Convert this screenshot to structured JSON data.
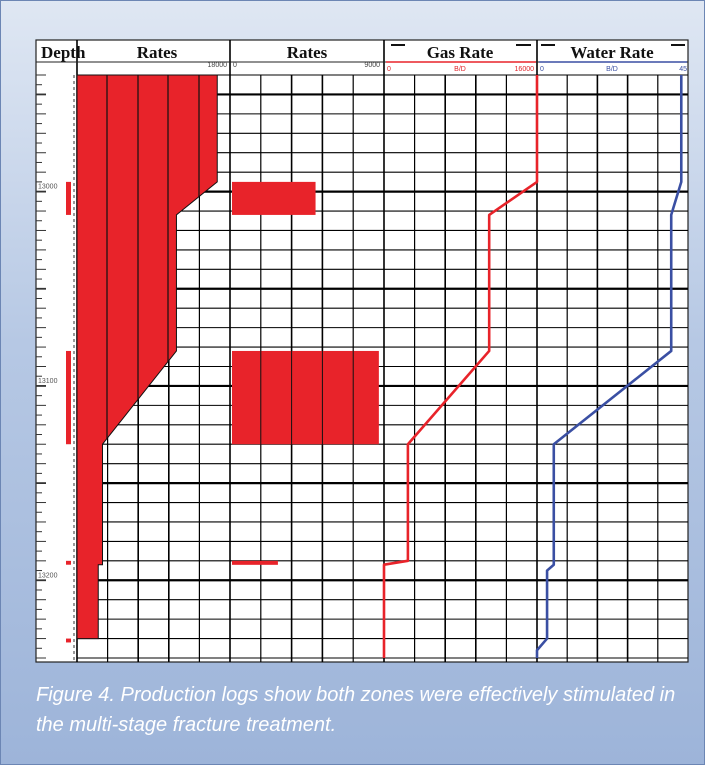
{
  "caption": "Figure 4. Production logs show both zones were effectively stimulated in the multi-stage fracture treatment.",
  "colors": {
    "red": "#e8232a",
    "blue": "#3a4fa3",
    "grid": "#000000"
  },
  "chart_data": {
    "type": "line",
    "depth_axis": {
      "label": "Depth",
      "range": [
        12940,
        13240
      ],
      "tick_labels": [
        "13000",
        "13100",
        "13200"
      ]
    },
    "tracks": [
      {
        "id": "cumulative_rates",
        "title": "Rates",
        "type": "area",
        "scale": {
          "min": 0,
          "max": 18000,
          "min_label": "",
          "max_label": "18000",
          "unit": ""
        },
        "profile": [
          {
            "depth": 12940,
            "value": 16500
          },
          {
            "depth": 12995,
            "value": 16500
          },
          {
            "depth": 13012,
            "value": 11700
          },
          {
            "depth": 13082,
            "value": 11700
          },
          {
            "depth": 13130,
            "value": 3000
          },
          {
            "depth": 13192,
            "value": 3000
          },
          {
            "depth": 13192,
            "value": 2500
          },
          {
            "depth": 13230,
            "value": 2500
          }
        ],
        "perforation_intervals": [
          {
            "top": 12995,
            "bottom": 13012
          },
          {
            "top": 13082,
            "bottom": 13130
          },
          {
            "top": 13190,
            "bottom": 13192
          },
          {
            "top": 13230,
            "bottom": 13232
          }
        ]
      },
      {
        "id": "zone_rates",
        "title": "Rates",
        "type": "bar",
        "scale": {
          "min": 0,
          "max": 9000,
          "min_label": "0",
          "max_label": "9000",
          "unit": ""
        },
        "intervals": [
          {
            "top": 12995,
            "bottom": 13012,
            "value": 5000
          },
          {
            "top": 13082,
            "bottom": 13130,
            "value": 8700
          },
          {
            "top": 13190,
            "bottom": 13192,
            "value": 2800
          }
        ]
      },
      {
        "id": "gas_rate",
        "title": "Gas Rate",
        "type": "line",
        "scale": {
          "min": 0,
          "max": 16000,
          "min_label": "0",
          "max_label": "16000",
          "unit": "B/D"
        },
        "color": "#e8232a",
        "points": [
          {
            "depth": 12940,
            "value": 16000
          },
          {
            "depth": 12995,
            "value": 16000
          },
          {
            "depth": 13012,
            "value": 11000
          },
          {
            "depth": 13082,
            "value": 11000
          },
          {
            "depth": 13130,
            "value": 2500
          },
          {
            "depth": 13190,
            "value": 2500
          },
          {
            "depth": 13192,
            "value": 0
          },
          {
            "depth": 13240,
            "value": 0
          }
        ]
      },
      {
        "id": "water_rate",
        "title": "Water Rate",
        "type": "line",
        "scale": {
          "min": 0,
          "max": 45,
          "min_label": "0",
          "max_label": "45",
          "unit": "B/D"
        },
        "color": "#3a4fa3",
        "points": [
          {
            "depth": 12940,
            "value": 43
          },
          {
            "depth": 12995,
            "value": 43
          },
          {
            "depth": 13012,
            "value": 40
          },
          {
            "depth": 13082,
            "value": 40
          },
          {
            "depth": 13130,
            "value": 5
          },
          {
            "depth": 13192,
            "value": 5
          },
          {
            "depth": 13195,
            "value": 3
          },
          {
            "depth": 13230,
            "value": 3
          },
          {
            "depth": 13236,
            "value": 0
          },
          {
            "depth": 13240,
            "value": 0
          }
        ]
      }
    ]
  }
}
